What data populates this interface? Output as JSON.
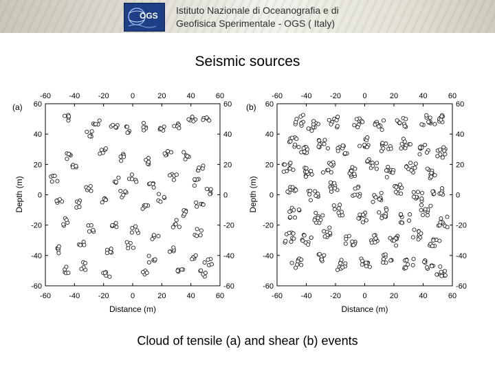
{
  "header": {
    "institute_line1": "Istituto Nazionale di Oceanografia e di",
    "institute_line2": "Geofisica Sperimentale - OGS ( Italy)",
    "logo_text": "OGS",
    "brand_color": "#1e3f86"
  },
  "title": "Seismic sources",
  "caption": "Cloud of tensile (a) and shear (b) events",
  "chart_data": [
    {
      "type": "scatter",
      "panel_label": "(a)",
      "xlabel": "Distance (m)",
      "ylabel": "Depth (m)",
      "xlim": [
        -60,
        60
      ],
      "ylim": [
        -60,
        60
      ],
      "xticks": [
        "-60",
        "-40",
        "-20",
        "0",
        "20",
        "40",
        "60"
      ],
      "yticks": [
        "60",
        "40",
        "20",
        "0",
        "-20",
        "-40",
        "-60"
      ],
      "marker": "open-circle",
      "grid": false,
      "clusters": [
        [
          -45,
          50
        ],
        [
          -30,
          40
        ],
        [
          -25,
          47
        ],
        [
          -13,
          46
        ],
        [
          -4,
          43
        ],
        [
          8,
          45
        ],
        [
          20,
          45
        ],
        [
          31,
          45
        ],
        [
          41,
          49
        ],
        [
          50,
          49
        ],
        [
          -43,
          25
        ],
        [
          -20,
          28
        ],
        [
          -7,
          25
        ],
        [
          10,
          22
        ],
        [
          24,
          27
        ],
        [
          37,
          26
        ],
        [
          47,
          18
        ],
        [
          -54,
          10
        ],
        [
          -40,
          18
        ],
        [
          -30,
          5
        ],
        [
          -12,
          9
        ],
        [
          0,
          11
        ],
        [
          13,
          5
        ],
        [
          28,
          12
        ],
        [
          44,
          8
        ],
        [
          52,
          2
        ],
        [
          -50,
          -3
        ],
        [
          -37,
          -6
        ],
        [
          -20,
          -3
        ],
        [
          -6,
          0
        ],
        [
          8,
          -8
        ],
        [
          20,
          -2
        ],
        [
          34,
          -12
        ],
        [
          46,
          -6
        ],
        [
          -47,
          -18
        ],
        [
          -28,
          -22
        ],
        [
          -12,
          -19
        ],
        [
          2,
          -23
        ],
        [
          16,
          -28
        ],
        [
          30,
          -19
        ],
        [
          45,
          -25
        ],
        [
          -51,
          -36
        ],
        [
          -35,
          -33
        ],
        [
          -17,
          -38
        ],
        [
          -2,
          -33
        ],
        [
          13,
          -42
        ],
        [
          27,
          -37
        ],
        [
          41,
          -40
        ],
        [
          52,
          -44
        ],
        [
          -46,
          -49
        ],
        [
          -33,
          -47
        ],
        [
          -18,
          -53
        ],
        [
          8,
          -50
        ],
        [
          33,
          -51
        ],
        [
          48,
          -52
        ]
      ]
    },
    {
      "type": "scatter",
      "panel_label": "(b)",
      "xlabel": "Distance (m)",
      "ylabel": "Depth (m)",
      "xlim": [
        -60,
        60
      ],
      "ylim": [
        -60,
        60
      ],
      "xticks": [
        "-60",
        "-40",
        "-20",
        "0",
        "20",
        "40",
        "60"
      ],
      "yticks": [
        "60",
        "40",
        "20",
        "0",
        "-20",
        "-40",
        "-60"
      ],
      "marker": "open-circle",
      "grid": false,
      "clusters": [
        [
          -45,
          49
        ],
        [
          -35,
          45
        ],
        [
          -22,
          48
        ],
        [
          -5,
          47
        ],
        [
          10,
          46
        ],
        [
          25,
          48
        ],
        [
          42,
          49
        ],
        [
          50,
          50
        ],
        [
          -48,
          35
        ],
        [
          -40,
          30
        ],
        [
          -28,
          33
        ],
        [
          -15,
          30
        ],
        [
          0,
          35
        ],
        [
          15,
          32
        ],
        [
          28,
          34
        ],
        [
          40,
          30
        ],
        [
          52,
          28
        ],
        [
          -52,
          18
        ],
        [
          -38,
          15
        ],
        [
          -25,
          18
        ],
        [
          -10,
          15
        ],
        [
          5,
          20
        ],
        [
          18,
          15
        ],
        [
          32,
          18
        ],
        [
          45,
          14
        ],
        [
          -50,
          3
        ],
        [
          -35,
          0
        ],
        [
          -20,
          5
        ],
        [
          -5,
          2
        ],
        [
          8,
          -2
        ],
        [
          22,
          4
        ],
        [
          36,
          -1
        ],
        [
          50,
          2
        ],
        [
          -48,
          -12
        ],
        [
          -32,
          -15
        ],
        [
          -18,
          -10
        ],
        [
          -2,
          -15
        ],
        [
          12,
          -12
        ],
        [
          28,
          -15
        ],
        [
          42,
          -10
        ],
        [
          54,
          -18
        ],
        [
          -52,
          -28
        ],
        [
          -40,
          -30
        ],
        [
          -25,
          -25
        ],
        [
          -10,
          -30
        ],
        [
          5,
          -28
        ],
        [
          20,
          -30
        ],
        [
          35,
          -26
        ],
        [
          48,
          -32
        ],
        [
          -47,
          -45
        ],
        [
          -30,
          -42
        ],
        [
          -15,
          -46
        ],
        [
          0,
          -44
        ],
        [
          15,
          -42
        ],
        [
          30,
          -45
        ],
        [
          44,
          -46
        ],
        [
          52,
          -50
        ]
      ]
    }
  ]
}
